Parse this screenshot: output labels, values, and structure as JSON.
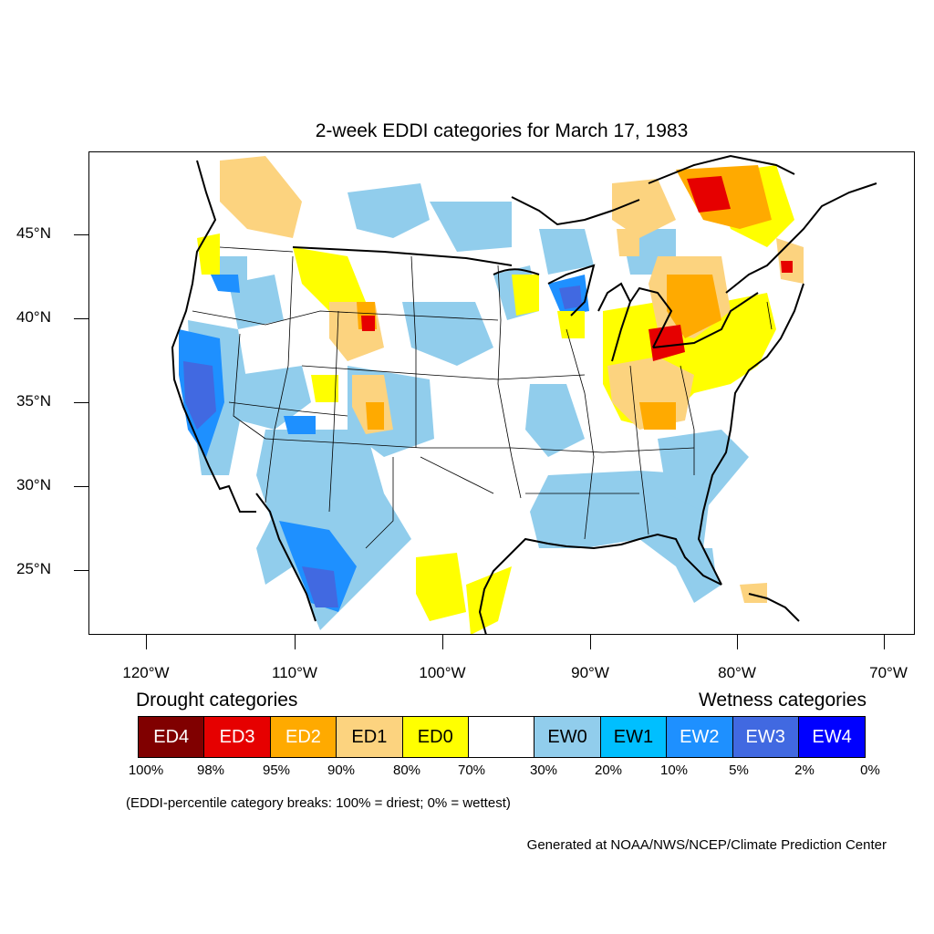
{
  "map": {
    "title": "2-week EDDI categories for March 17, 1983",
    "lat_labels": [
      "45°N",
      "40°N",
      "35°N",
      "30°N",
      "25°N"
    ],
    "lon_labels": [
      "120°W",
      "110°W",
      "100°W",
      "90°W",
      "80°W",
      "70°W"
    ],
    "layers": [
      "state-boundaries",
      "coastlines",
      "eddi-category-shading"
    ]
  },
  "legend": {
    "drought_heading": "Drought categories",
    "wetness_heading": "Wetness categories",
    "categories": [
      {
        "label": "ED4",
        "color": "#800000",
        "text_color": "#ffffff"
      },
      {
        "label": "ED3",
        "color": "#e60000",
        "text_color": "#ffffff"
      },
      {
        "label": "ED2",
        "color": "#ffaa00",
        "text_color": "#ffffff"
      },
      {
        "label": "ED1",
        "color": "#fcd37f",
        "text_color": "#000000"
      },
      {
        "label": "ED0",
        "color": "#ffff00",
        "text_color": "#000000"
      },
      {
        "label": "",
        "color": "#ffffff",
        "text_color": "#000000"
      },
      {
        "label": "EW0",
        "color": "#91cdec",
        "text_color": "#000000"
      },
      {
        "label": "EW1",
        "color": "#00bfff",
        "text_color": "#000000"
      },
      {
        "label": "EW2",
        "color": "#1e90ff",
        "text_color": "#ffffff"
      },
      {
        "label": "EW3",
        "color": "#4169e1",
        "text_color": "#ffffff"
      },
      {
        "label": "EW4",
        "color": "#0000ff",
        "text_color": "#ffffff"
      }
    ],
    "percentiles": [
      "100%",
      "98%",
      "95%",
      "90%",
      "80%",
      "70%",
      "30%",
      "20%",
      "10%",
      "5%",
      "2%",
      "0%"
    ],
    "note": "(EDDI-percentile category breaks: 100% = driest; 0% = wettest)",
    "credit": "Generated at NOAA/NWS/NCEP/Climate Prediction Center"
  }
}
